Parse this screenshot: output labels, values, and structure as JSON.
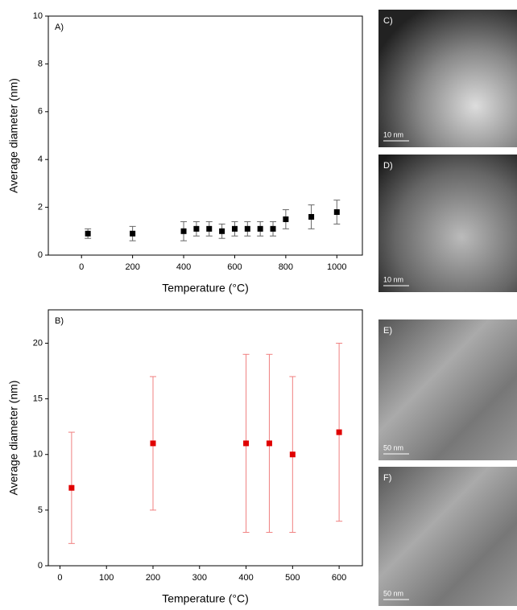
{
  "chart_data": [
    {
      "type": "scatter",
      "panel_label": "A)",
      "xlabel": "Temperature (°C)",
      "ylabel": "Average diameter (nm)",
      "x": [
        25,
        200,
        400,
        450,
        500,
        550,
        600,
        650,
        700,
        750,
        800,
        900,
        1000
      ],
      "values": [
        0.9,
        0.9,
        1.0,
        1.1,
        1.1,
        1.0,
        1.1,
        1.1,
        1.1,
        1.1,
        1.5,
        1.6,
        1.8
      ],
      "errors": [
        0.2,
        0.3,
        0.4,
        0.3,
        0.3,
        0.3,
        0.3,
        0.3,
        0.3,
        0.3,
        0.4,
        0.5,
        0.5
      ],
      "color": "#000000",
      "xlim": [
        -130,
        1100
      ],
      "xticks": [
        0,
        200,
        400,
        600,
        800,
        1000
      ],
      "ylim": [
        0,
        10
      ],
      "yticks": [
        0,
        2,
        4,
        6,
        8,
        10
      ]
    },
    {
      "type": "scatter",
      "panel_label": "B)",
      "xlabel": "Temperature (°C)",
      "ylabel": "Average diameter (nm)",
      "x": [
        25,
        200,
        400,
        450,
        500,
        600
      ],
      "values": [
        7,
        11,
        11,
        11,
        10,
        12
      ],
      "errors": [
        5,
        6,
        8,
        8,
        7,
        8
      ],
      "color": "#e00000",
      "xlim": [
        -25,
        650
      ],
      "xticks": [
        0,
        100,
        200,
        300,
        400,
        500,
        600
      ],
      "ylim": [
        0,
        23
      ],
      "yticks": [
        0,
        5,
        10,
        15,
        20
      ]
    }
  ],
  "images": [
    {
      "label": "C)",
      "scale": "10 nm"
    },
    {
      "label": "D)",
      "scale": "10 nm"
    },
    {
      "label": "E)",
      "scale": "50 nm"
    },
    {
      "label": "F)",
      "scale": "50 nm"
    }
  ]
}
